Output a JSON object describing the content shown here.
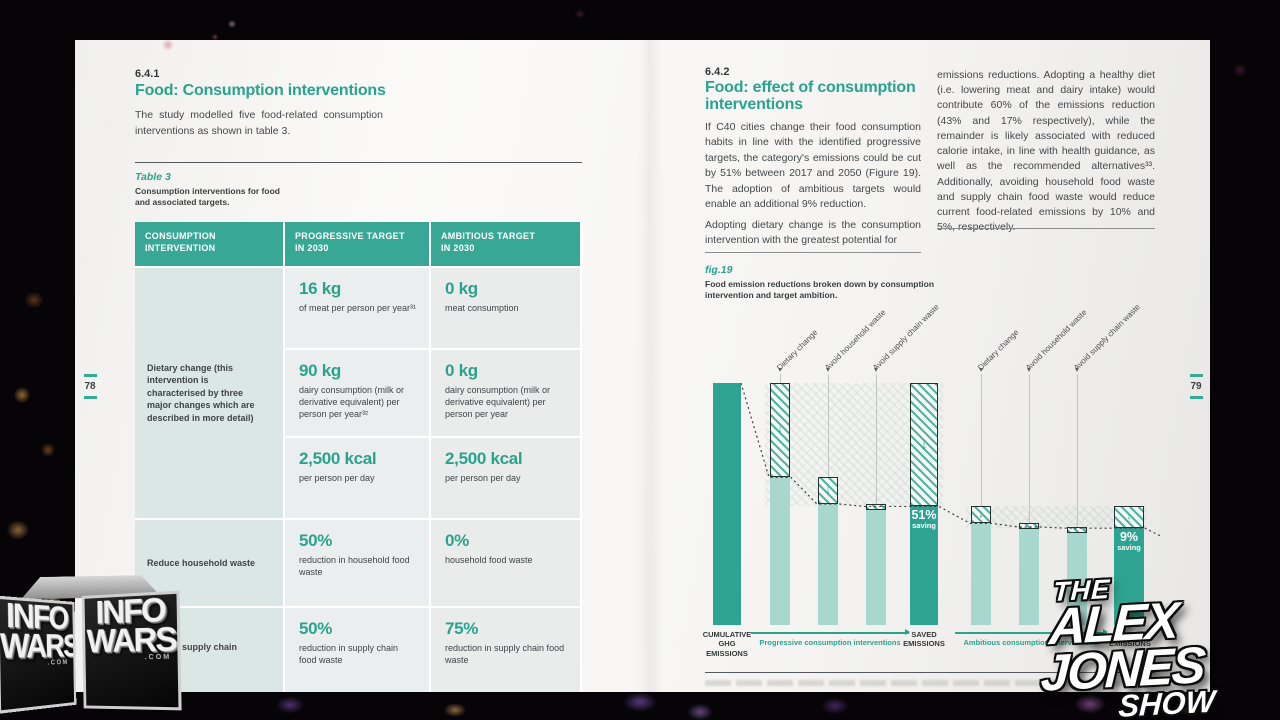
{
  "colors": {
    "teal_accent": "#2aa38d",
    "table_header_bg": "#38a795",
    "bar_solid": "#2ea391",
    "bar_light": "#a7d7ce",
    "ink": "#33383b"
  },
  "left_page": {
    "page_number": "78",
    "section_number": "6.4.1",
    "title": "Food: Consumption interventions",
    "intro": "The study modelled five food-related consumption interventions as shown in table 3.",
    "table_label": "Table 3",
    "table_caption": "Consumption interventions for food\nand associated targets.",
    "table": {
      "header_col1": "CONSUMPTION\nINTERVENTION",
      "header_col2": "PROGRESSIVE TARGET\nIN 2030",
      "header_col3": "AMBITIOUS TARGET\nIN 2030",
      "dietary_label": "Dietary change (this intervention is characterised by three major changes which are described in more detail)",
      "rows": [
        {
          "p_value": "16 kg",
          "p_desc": "of meat per person per year³¹",
          "a_value": "0 kg",
          "a_desc": "meat consumption"
        },
        {
          "p_value": "90 kg",
          "p_desc": "dairy consumption (milk or derivative equivalent) per person per year³²",
          "a_value": "0 kg",
          "a_desc": "dairy consumption (milk or derivative equivalent) per person per year"
        },
        {
          "p_value": "2,500 kcal",
          "p_desc": "per person per day",
          "a_value": "2,500 kcal",
          "a_desc": "per person per day"
        },
        {
          "label": "Reduce household waste",
          "p_value": "50%",
          "p_desc": "reduction in household food waste",
          "a_value": "0%",
          "a_desc": "household food waste"
        },
        {
          "label": "Reduce supply chain waste",
          "p_value": "50%",
          "p_desc": "reduction in supply chain food waste",
          "a_value": "75%",
          "a_desc": "reduction in supply chain food waste"
        }
      ]
    }
  },
  "right_page": {
    "page_number": "79",
    "section_number": "6.4.2",
    "title": "Food: effect of consumption interventions",
    "col1_p1": "If C40 cities change their food consumption habits in line with the identified progressive targets, the category's emissions could be cut by 51% between 2017 and 2050 (Figure 19). The adoption of ambitious targets would enable an additional 9% reduction.",
    "col1_p2": "Adopting dietary change is the consumption intervention with the greatest potential for",
    "col2_p1": "emissions reductions. Adopting a healthy diet (i.e. lowering meat and dairy intake) would contribute 60% of the emissions reduction (43% and 17% respectively), while the remainder is likely associated with reduced calorie intake, in line with health guidance, as well as the recommended alternatives³³. Additionally, avoiding household food waste and supply chain food waste would reduce current food-related emissions by 10% and 5%, respectively.",
    "figure_label": "fig.19",
    "figure_caption": "Food emission reductions broken down by consumption\nintervention and target ambition."
  },
  "chart_data": {
    "type": "bar",
    "subtype": "waterfall",
    "title": "Food emission reductions broken down by consumption intervention and target ambition.",
    "figure_label": "fig.19",
    "ylim": [
      0,
      100
    ],
    "grid": false,
    "bars": [
      {
        "label": "CUMULATIVE GHG EMISSIONS",
        "group": "baseline",
        "kind": "baseline",
        "level": 100
      },
      {
        "label": "Dietary change",
        "group": "progressive",
        "kind": "step",
        "level_before": 100,
        "level_after": 61,
        "reduction": 39
      },
      {
        "label": "Avoid household waste",
        "group": "progressive",
        "kind": "step",
        "level_before": 61,
        "level_after": 50,
        "reduction": 11
      },
      {
        "label": "Avoid supply chain waste",
        "group": "progressive",
        "kind": "step",
        "level_before": 50,
        "level_after": 49,
        "reduction": 1
      },
      {
        "label": "SAVED EMISSIONS",
        "group": "progressive",
        "kind": "saved",
        "saved_display": 51,
        "remaining": 49,
        "annotation": "51% saving"
      },
      {
        "label": "Dietary change",
        "group": "ambitious",
        "kind": "step",
        "level_before": 49,
        "level_after": 42,
        "reduction": 7
      },
      {
        "label": "Avoid household waste",
        "group": "ambitious",
        "kind": "step",
        "level_before": 42,
        "level_after": 40.5,
        "reduction": 1.5
      },
      {
        "label": "Avoid supply chain waste",
        "group": "ambitious",
        "kind": "step",
        "level_before": 40.5,
        "level_after": 40,
        "reduction": 0.5
      },
      {
        "label": "SAVED EMISSIONS",
        "group": "ambitious",
        "kind": "saved",
        "saved_display": 9,
        "remaining": 40,
        "annotation": "9% saving"
      }
    ],
    "axis_labels": {
      "baseline": "CUMULATIVE\nGHG\nEMISSIONS",
      "progressive": "Progressive consumption interventions",
      "saved": "SAVED\nEMISSIONS",
      "ambitious": "Ambitious consumption interventions",
      "saved2": "SAVED\nEMISSIONS"
    },
    "callouts": [
      "51% saving",
      "9% saving"
    ]
  },
  "watermarks": {
    "infowars": {
      "line1": "INFO",
      "line2": "WARS",
      "domain": ".COM"
    },
    "alex_jones": {
      "the": "THE",
      "alex": "ALEX",
      "jones": "JONES",
      "show": "SHOW"
    }
  }
}
